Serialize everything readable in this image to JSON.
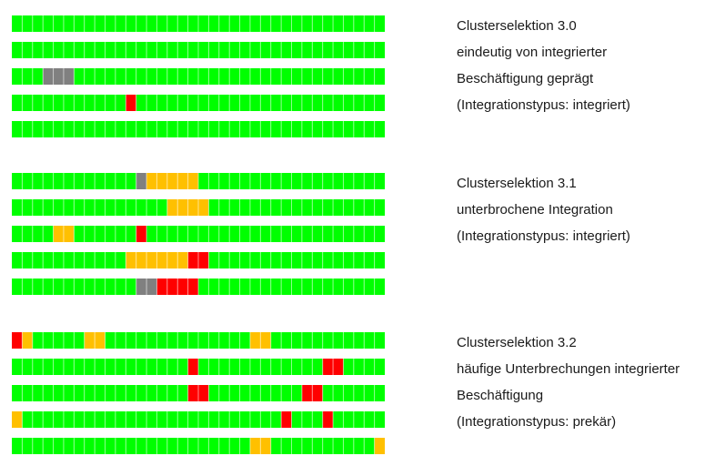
{
  "colors": {
    "G": "#00ff00",
    "Y": "#ffc000",
    "R": "#ff0000",
    "X": "#808080",
    "grid": "#ffffff"
  },
  "legend_codes": {
    "G": "green",
    "Y": "yellow",
    "R": "red",
    "X": "gray"
  },
  "columns": 36,
  "groups": [
    {
      "caption": [
        "Clusterselektion 3.0",
        "eindeutig von integrierter",
        "Beschäftigung geprägt",
        "(Integrationstypus: integriert)"
      ],
      "rows": [
        "GGGGGGGGGGGGGGGGGGGGGGGGGGGGGGGGGGGG",
        "GGGGGGGGGGGGGGGGGGGGGGGGGGGGGGGGGGGG",
        "GGGXXXGGGGGGGGGGGGGGGGGGGGGGGGGGGGGG",
        "GGGGGGGGGGGRGGGGGGGGGGGGGGGGGGGGGGGG",
        "GGGGGGGGGGGGGGGGGGGGGGGGGGGGGGGGGGGG"
      ]
    },
    {
      "caption": [
        "Clusterselektion 3.1",
        "unterbrochene Integration",
        "(Integrationstypus: integriert)"
      ],
      "rows": [
        "GGGGGGGGGGGGXYYYYYGGGGGGGGGGGGGGGGGG",
        "GGGGGGGGGGGGGGGYYYYGGGGGGGGGGGGGGGGG",
        "GGGGYYGGGGGGRGGGGGGGGGGGGGGGGGGGGGGG",
        "GGGGGGGGGGGYYYYYYRRGGGGGGGGGGGGGGGGG",
        "GGGGGGGGGGGGXXRRRRGGGGGGGGGGGGGGGGGG"
      ]
    },
    {
      "caption": [
        "Clusterselektion 3.2",
        "häufige Unterbrechungen integrierter",
        "Beschäftigung",
        "(Integrationstypus: prekär)"
      ],
      "rows": [
        "RYGGGGGYYGGGGGGGGGGGGGGYYGGGGGGGGGGG",
        "GGGGGGGGGGGGGGGGGRGGGGGGGGGGGGRRGGGG",
        "GGGGGGGGGGGGGGGGGRRGGGGGGGGGRRGGGGGG",
        "YGGGGGGGGGGGGGGGGGGGGGGGGGRGGGRGGGGG",
        "GGGGGGGGGGGGGGGGGGGGGGGYYGGGGGGGGGGY"
      ]
    }
  ]
}
